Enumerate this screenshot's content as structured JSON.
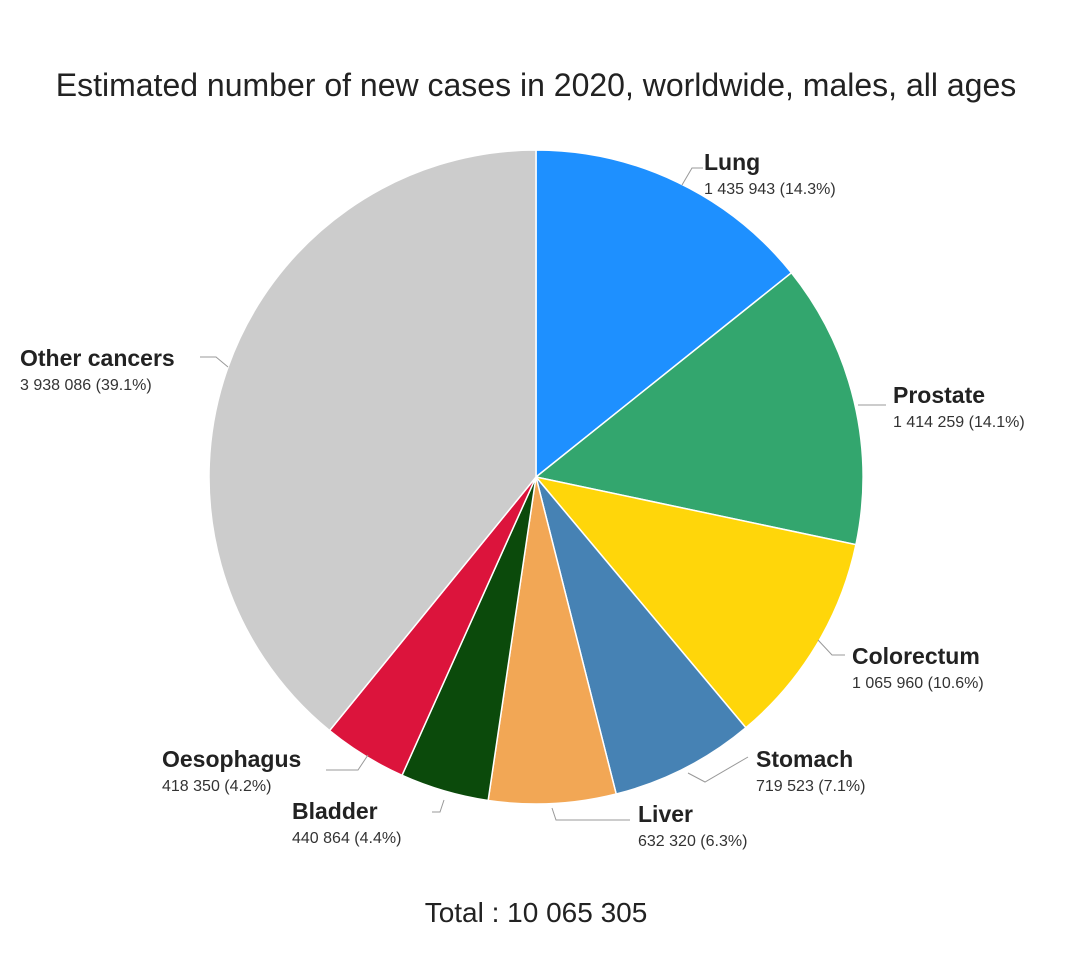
{
  "chart_data": {
    "type": "pie",
    "title": "Estimated number of new cases in 2020, worldwide, males, all ages",
    "total_label": "Total : 10 065 305",
    "slices": [
      {
        "name": "Lung",
        "value": 1435943,
        "value_label": "1 435 943 (14.3%)",
        "color": "#1E90FF"
      },
      {
        "name": "Prostate",
        "value": 1414259,
        "value_label": "1 414 259 (14.1%)",
        "color": "#33A66E"
      },
      {
        "name": "Colorectum",
        "value": 1065960,
        "value_label": "1 065 960 (10.6%)",
        "color": "#FFD60A"
      },
      {
        "name": "Stomach",
        "value": 719523,
        "value_label": "719 523 (7.1%)",
        "color": "#4682B4"
      },
      {
        "name": "Liver",
        "value": 632320,
        "value_label": "632 320 (6.3%)",
        "color": "#F2A755"
      },
      {
        "name": "Bladder",
        "value": 440864,
        "value_label": "440 864 (4.4%)",
        "color": "#0B4A0B"
      },
      {
        "name": "Oesophagus",
        "value": 418350,
        "value_label": "418 350 (4.2%)",
        "color": "#DC143C"
      },
      {
        "name": "Other cancers",
        "value": 3938086,
        "value_label": "3 938 086 (39.1%)",
        "color": "#CCCCCC"
      }
    ]
  }
}
